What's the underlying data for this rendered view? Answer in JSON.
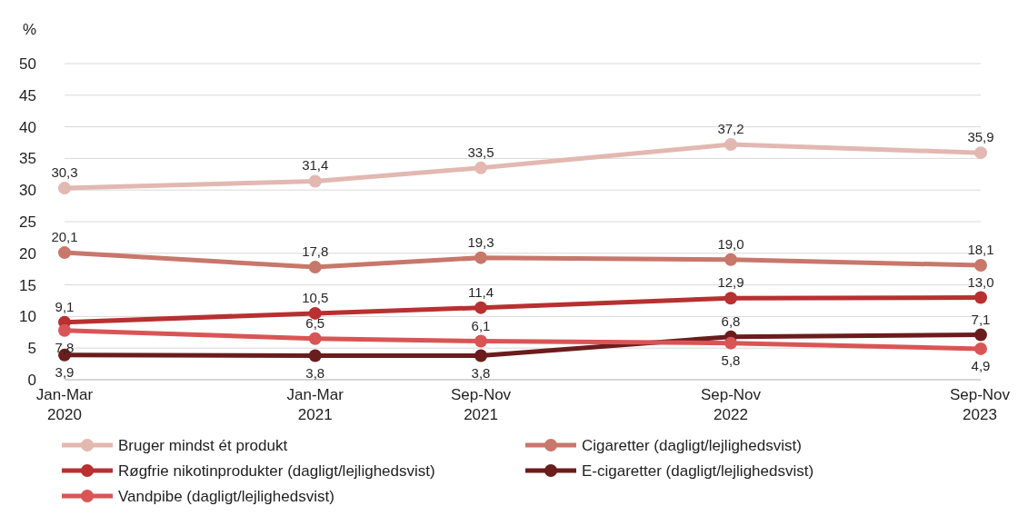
{
  "chart_data": {
    "type": "line",
    "ylabel": "%",
    "x": [
      "2020-02",
      "2021-02",
      "2021-10",
      "2022-10",
      "2023-10"
    ],
    "xlim": [
      "2020-02",
      "2023-10"
    ],
    "xticks": [
      {
        "value": "2020-02",
        "label": "Jan-Mar\n2020"
      },
      {
        "value": "2021-02",
        "label": "Jan-Mar\n2021"
      },
      {
        "value": "2021-10",
        "label": "Sep-Nov\n2021"
      },
      {
        "value": "2022-10",
        "label": "Sep-Nov\n2022"
      },
      {
        "value": "2023-10",
        "label": "Sep-Nov\n2023"
      }
    ],
    "ylim": [
      0,
      50
    ],
    "yticks": [
      0,
      5,
      10,
      15,
      20,
      25,
      30,
      35,
      40,
      45,
      50
    ],
    "grid": "y",
    "legend": "bottom",
    "marker": "circle",
    "line_style": "solid",
    "series": [
      {
        "name": "Bruger mindst ét produkt",
        "color": "#e2b8b1",
        "values": [
          30.3,
          31.4,
          33.5,
          37.2,
          35.9
        ],
        "value_labels": [
          "30,3",
          "31,4",
          "33,5",
          "37,2",
          "35,9"
        ]
      },
      {
        "name": "Cigaretter (dagligt/lejlighedsvist)",
        "color": "#c8776b",
        "values": [
          20.1,
          17.8,
          19.3,
          19.0,
          18.1
        ],
        "value_labels": [
          "20,1",
          "17,8",
          "19,3",
          "19,0",
          "18,1"
        ]
      },
      {
        "name": "Røgfrie nikotinprodukter (dagligt/lejlighedsvist)",
        "color": "#b83030",
        "values": [
          9.1,
          10.5,
          11.4,
          12.9,
          13.0
        ],
        "value_labels": [
          "9,1",
          "10,5",
          "11,4",
          "12,9",
          "13,0"
        ]
      },
      {
        "name": "E-cigaretter (dagligt/lejlighedsvist)",
        "color": "#6b1c1c",
        "values": [
          3.9,
          3.8,
          3.8,
          6.8,
          7.1
        ],
        "value_labels": [
          "3,9",
          "3,8",
          "3,8",
          "6,8",
          "7,1"
        ]
      },
      {
        "name": "Vandpibe (dagligt/lejlighedsvist)",
        "color": "#d95555",
        "values": [
          7.8,
          6.5,
          6.1,
          5.8,
          4.9
        ],
        "value_labels": [
          "7,8",
          "6,5",
          "6,1",
          "5,8",
          "4,9"
        ]
      }
    ]
  }
}
